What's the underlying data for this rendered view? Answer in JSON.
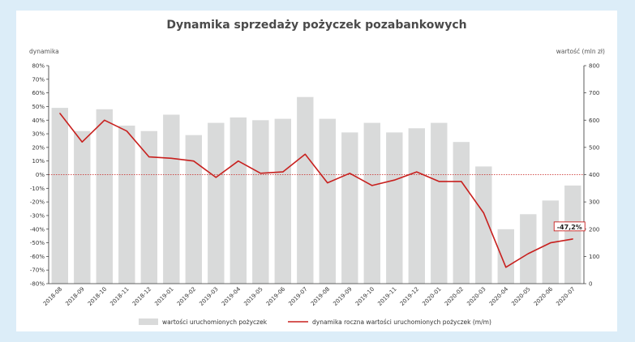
{
  "chart_data": {
    "type": "bar+line",
    "title": "Dynamika sprzedaży pożyczek pozabankowych",
    "y_left_label": "dynamika",
    "y_right_label": "wartość (mln zł)",
    "y_left_lim": [
      -80,
      80
    ],
    "y_left_step": 10,
    "y_right_lim": [
      0,
      800
    ],
    "y_right_step": 100,
    "x_type": "category",
    "categories": [
      "2018-08",
      "2018-09",
      "2018-10",
      "2018-11",
      "2018-12",
      "2019-01",
      "2019-02",
      "2019-03",
      "2019-04",
      "2019-05",
      "2019-06",
      "2019-07",
      "2019-08",
      "2019-09",
      "2019-10",
      "2019-11",
      "2019-12",
      "2020-01",
      "2020-02",
      "2020-03",
      "2020-04",
      "2020-05",
      "2020-06",
      "2020-07"
    ],
    "series": [
      {
        "name": "wartości uruchomionych pożyczek",
        "type": "bar",
        "axis": "right",
        "color": "#d9dada",
        "values": [
          645,
          560,
          640,
          580,
          560,
          620,
          545,
          590,
          610,
          600,
          605,
          685,
          605,
          555,
          590,
          555,
          570,
          590,
          520,
          430,
          200,
          255,
          305,
          360
        ]
      },
      {
        "name": "dynamika roczna wartości uruchomionych pożyczek (m/m)",
        "type": "line",
        "axis": "left",
        "color": "#c8201e",
        "values": [
          45,
          24,
          40,
          32,
          13,
          12,
          10,
          -2,
          10,
          1,
          2,
          15,
          -6,
          1,
          -8,
          -4,
          2,
          -5,
          -5,
          -28,
          -68,
          -58,
          -50,
          -47.2
        ]
      }
    ],
    "annotations": [
      {
        "category": "2020-07",
        "text": "-47,2%"
      }
    ],
    "reference_line": {
      "axis": "left",
      "value": 0,
      "color": "#c8201e",
      "style": "dotted"
    },
    "grid": false,
    "legend_position": "bottom"
  }
}
